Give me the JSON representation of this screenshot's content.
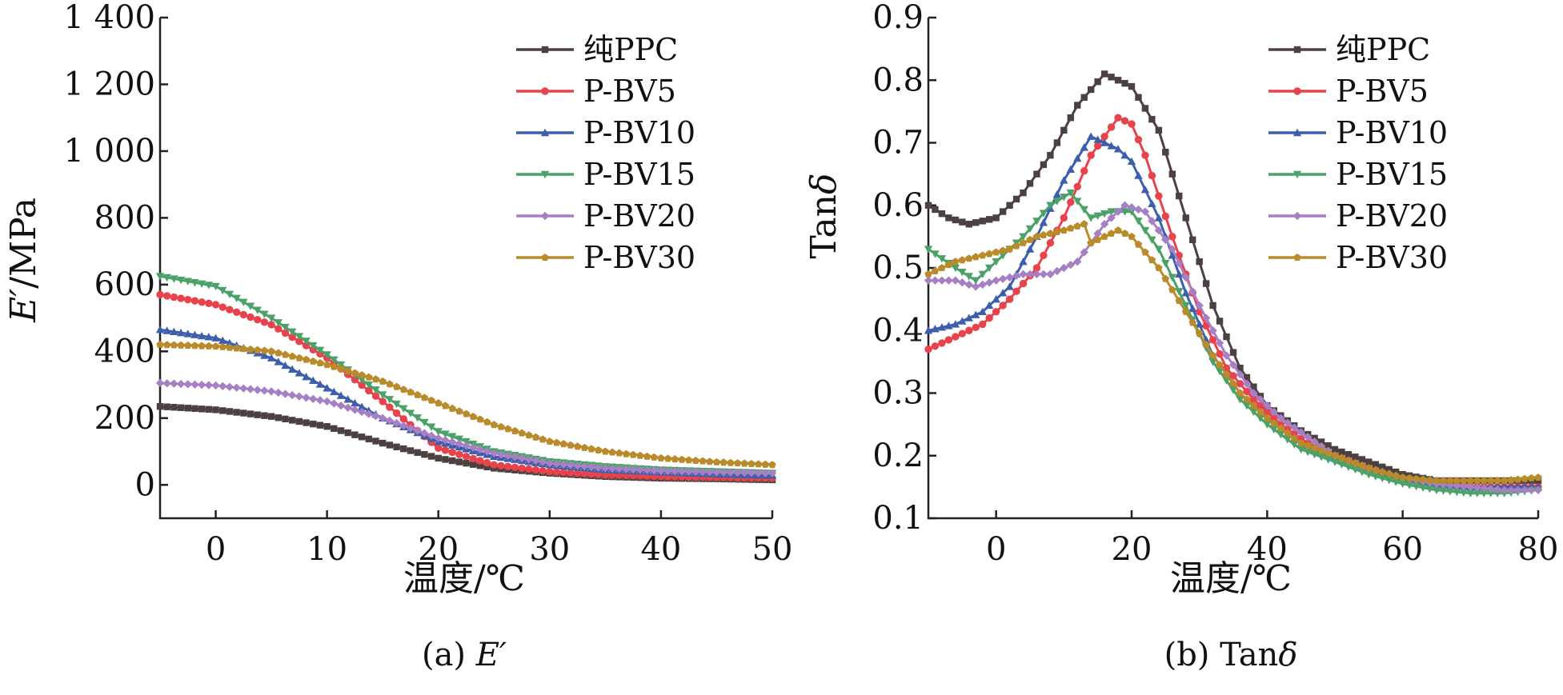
{
  "chart_data": [
    {
      "type": "line",
      "caption": "(a) E′",
      "caption_prefix": "(a) ",
      "caption_symbol": "E′",
      "xlabel": "温度/℃",
      "ylabel": "E′/MPa",
      "ylabel_symbol": "E′",
      "ylabel_unit": "/MPa",
      "xlim": [
        -5,
        50
      ],
      "ylim": [
        -100,
        1400
      ],
      "xticks": [
        0,
        10,
        20,
        30,
        40,
        50
      ],
      "yticks": [
        0,
        200,
        400,
        600,
        800,
        1000,
        1200,
        1400
      ],
      "xtick_labels": [
        "0",
        "10",
        "20",
        "30",
        "40",
        "50"
      ],
      "ytick_labels": [
        "0",
        "200",
        "400",
        "600",
        "800",
        "1 000",
        "1 200",
        "1 400"
      ],
      "grid": false,
      "legend_position": "top-right",
      "series": [
        {
          "name": "纯PPC",
          "color": "#4d4040",
          "marker": "square",
          "x": [
            -5,
            0,
            5,
            10,
            15,
            20,
            25,
            30,
            35,
            40,
            45,
            50
          ],
          "y": [
            235,
            225,
            205,
            175,
            125,
            80,
            50,
            35,
            25,
            20,
            18,
            15
          ]
        },
        {
          "name": "P-BV5",
          "color": "#e8434d",
          "marker": "circle",
          "x": [
            -5,
            0,
            5,
            10,
            15,
            20,
            25,
            30,
            35,
            40,
            45,
            50
          ],
          "y": [
            570,
            540,
            480,
            380,
            250,
            110,
            60,
            40,
            30,
            25,
            22,
            20
          ]
        },
        {
          "name": "P-BV10",
          "color": "#3d5fab",
          "marker": "triangle-up",
          "x": [
            -5,
            0,
            5,
            10,
            15,
            20,
            25,
            30,
            35,
            40,
            45,
            50
          ],
          "y": [
            465,
            440,
            380,
            290,
            200,
            130,
            85,
            60,
            45,
            38,
            32,
            28
          ]
        },
        {
          "name": "P-BV15",
          "color": "#4aa268",
          "marker": "triangle-down",
          "x": [
            -5,
            0,
            5,
            10,
            15,
            20,
            25,
            30,
            35,
            40,
            45,
            50
          ],
          "y": [
            625,
            595,
            500,
            390,
            270,
            160,
            100,
            70,
            55,
            45,
            40,
            35
          ]
        },
        {
          "name": "P-BV20",
          "color": "#a67fc4",
          "marker": "diamond",
          "x": [
            -5,
            0,
            5,
            10,
            15,
            20,
            25,
            30,
            35,
            40,
            45,
            50
          ],
          "y": [
            305,
            298,
            280,
            250,
            200,
            140,
            95,
            65,
            50,
            42,
            38,
            35
          ]
        },
        {
          "name": "P-BV30",
          "color": "#b98b2b",
          "marker": "pentagon",
          "x": [
            -5,
            0,
            5,
            10,
            15,
            20,
            25,
            30,
            35,
            40,
            45,
            50
          ],
          "y": [
            420,
            415,
            400,
            360,
            310,
            245,
            180,
            130,
            100,
            80,
            68,
            60
          ]
        }
      ]
    },
    {
      "type": "line",
      "caption": "(b) Tanδ",
      "caption_prefix": "(b) Tan",
      "caption_symbol": "δ",
      "xlabel": "温度/℃",
      "ylabel": "Tanδ",
      "ylabel_text": "Tan",
      "ylabel_symbol": "δ",
      "xlim": [
        -10,
        80
      ],
      "ylim": [
        0.1,
        0.9
      ],
      "xticks": [
        0,
        20,
        40,
        60,
        80
      ],
      "yticks": [
        0.1,
        0.2,
        0.3,
        0.4,
        0.5,
        0.6,
        0.7,
        0.8,
        0.9
      ],
      "xtick_labels": [
        "0",
        "20",
        "40",
        "60",
        "80"
      ],
      "ytick_labels": [
        "0.1",
        "0.2",
        "0.3",
        "0.4",
        "0.5",
        "0.6",
        "0.7",
        "0.8",
        "0.9"
      ],
      "grid": false,
      "legend_position": "top-right",
      "series": [
        {
          "name": "纯PPC",
          "color": "#4d4040",
          "marker": "square",
          "x": [
            -10,
            -7,
            -4,
            0,
            4,
            8,
            12,
            16,
            20,
            24,
            28,
            32,
            36,
            40,
            45,
            50,
            55,
            60,
            65,
            70,
            75,
            80
          ],
          "y": [
            0.6,
            0.58,
            0.57,
            0.58,
            0.62,
            0.68,
            0.76,
            0.81,
            0.79,
            0.72,
            0.58,
            0.44,
            0.34,
            0.28,
            0.24,
            0.21,
            0.19,
            0.17,
            0.16,
            0.16,
            0.16,
            0.16
          ]
        },
        {
          "name": "P-BV5",
          "color": "#e8434d",
          "marker": "circle",
          "x": [
            -10,
            -6,
            -2,
            2,
            6,
            10,
            14,
            18,
            20,
            22,
            26,
            30,
            34,
            38,
            42,
            46,
            50,
            55,
            60,
            65,
            70,
            75,
            80
          ],
          "y": [
            0.37,
            0.39,
            0.41,
            0.45,
            0.5,
            0.58,
            0.68,
            0.74,
            0.73,
            0.68,
            0.55,
            0.43,
            0.34,
            0.29,
            0.25,
            0.22,
            0.2,
            0.18,
            0.16,
            0.155,
            0.15,
            0.15,
            0.15
          ]
        },
        {
          "name": "P-BV10",
          "color": "#3d5fab",
          "marker": "triangle-up",
          "x": [
            -10,
            -6,
            -2,
            2,
            6,
            10,
            14,
            16,
            18,
            20,
            24,
            28,
            32,
            36,
            40,
            45,
            50,
            55,
            60,
            65,
            70,
            75,
            80
          ],
          "y": [
            0.4,
            0.41,
            0.43,
            0.47,
            0.55,
            0.64,
            0.71,
            0.7,
            0.69,
            0.67,
            0.58,
            0.46,
            0.36,
            0.3,
            0.26,
            0.22,
            0.2,
            0.18,
            0.165,
            0.155,
            0.15,
            0.15,
            0.15
          ]
        },
        {
          "name": "P-BV15",
          "color": "#4aa268",
          "marker": "triangle-down",
          "x": [
            -10,
            -6,
            -3,
            0,
            4,
            8,
            11,
            14,
            17,
            20,
            24,
            28,
            32,
            36,
            40,
            45,
            50,
            55,
            60,
            65,
            70,
            75,
            80
          ],
          "y": [
            0.53,
            0.5,
            0.48,
            0.51,
            0.55,
            0.6,
            0.62,
            0.58,
            0.59,
            0.59,
            0.53,
            0.44,
            0.35,
            0.29,
            0.25,
            0.21,
            0.19,
            0.17,
            0.155,
            0.145,
            0.14,
            0.14,
            0.145
          ]
        },
        {
          "name": "P-BV20",
          "color": "#a67fc4",
          "marker": "diamond",
          "x": [
            -10,
            -6,
            -3,
            0,
            4,
            8,
            12,
            16,
            19,
            22,
            26,
            30,
            34,
            38,
            42,
            46,
            50,
            55,
            60,
            65,
            70,
            75,
            80
          ],
          "y": [
            0.48,
            0.48,
            0.47,
            0.48,
            0.49,
            0.49,
            0.51,
            0.57,
            0.6,
            0.59,
            0.53,
            0.44,
            0.36,
            0.3,
            0.26,
            0.23,
            0.2,
            0.18,
            0.165,
            0.155,
            0.15,
            0.145,
            0.145
          ]
        },
        {
          "name": "P-BV30",
          "color": "#b98b2b",
          "marker": "pentagon",
          "x": [
            -10,
            -6,
            -2,
            2,
            6,
            10,
            13,
            14,
            16,
            18,
            20,
            24,
            28,
            32,
            36,
            40,
            45,
            50,
            55,
            60,
            65,
            70,
            75,
            80
          ],
          "y": [
            0.49,
            0.51,
            0.52,
            0.53,
            0.55,
            0.56,
            0.57,
            0.54,
            0.55,
            0.56,
            0.55,
            0.5,
            0.43,
            0.36,
            0.3,
            0.26,
            0.22,
            0.2,
            0.18,
            0.165,
            0.16,
            0.16,
            0.16,
            0.165
          ]
        }
      ]
    }
  ]
}
